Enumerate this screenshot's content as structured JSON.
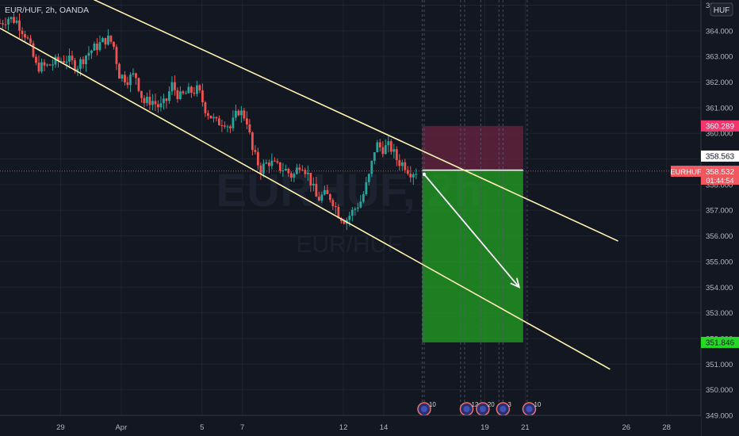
{
  "header": {
    "symbol_label": "EUR/HUF, 2h, OANDA"
  },
  "watermark": {
    "ticker": "EURHUF, 2h",
    "name": "EUR/HUF"
  },
  "currency_badge": "HUF",
  "colors": {
    "background": "#131722",
    "grid": "#2a2e39",
    "up": "#26a69a",
    "down": "#ef5350",
    "channel": "#fff3b0",
    "target_zone": "#22a622",
    "stop_zone": "#6b2440",
    "stop_label": "#f0366d",
    "target_label": "#27d827",
    "price_label": "#f0575f",
    "axis_text": "#b2b5be"
  },
  "price_labels": {
    "stop": "360.289",
    "entry": "358.563",
    "current": "358.532",
    "current_symbol": "EURHUF",
    "countdown": "01:44:54",
    "target": "351.846"
  },
  "event_markers": [
    "10",
    "12",
    "20",
    "3",
    "10"
  ],
  "chart_data": {
    "type": "candlestick",
    "title": "EUR/HUF, 2h, OANDA",
    "timeframe": "2h",
    "y_ticks": [
      "349.000",
      "350.000",
      "351.000",
      "352.000",
      "353.000",
      "354.000",
      "355.000",
      "356.000",
      "357.000",
      "358.000",
      "359.000",
      "360.000",
      "361.000",
      "362.000",
      "363.000",
      "364.000",
      "365.000"
    ],
    "y_range": [
      349.0,
      365.2
    ],
    "x_ticks": [
      {
        "label": "29",
        "day": 29
      },
      {
        "label": "Apr",
        "day": 32
      },
      {
        "label": "5",
        "day": 36
      },
      {
        "label": "7",
        "day": 38
      },
      {
        "label": "12",
        "day": 43
      },
      {
        "label": "14",
        "day": 45
      },
      {
        "label": "19",
        "day": 50
      },
      {
        "label": "21",
        "day": 52
      },
      {
        "label": "26",
        "day": 57
      },
      {
        "label": "28",
        "day": 59
      }
    ],
    "x_range": [
      26.0,
      60.7
    ],
    "price_path": [
      [
        26.0,
        364.3
      ],
      [
        26.4,
        364.5
      ],
      [
        26.8,
        364.4
      ],
      [
        27.3,
        363.8
      ],
      [
        27.8,
        362.6
      ],
      [
        28.3,
        362.6
      ],
      [
        28.8,
        362.8
      ],
      [
        29.3,
        362.9
      ],
      [
        29.8,
        362.6
      ],
      [
        30.3,
        363.1
      ],
      [
        30.8,
        363.4
      ],
      [
        31.3,
        363.7
      ],
      [
        31.6,
        363.5
      ],
      [
        31.9,
        362.3
      ],
      [
        32.3,
        362.1
      ],
      [
        32.7,
        362.3
      ],
      [
        33.1,
        361.2
      ],
      [
        33.5,
        361.3
      ],
      [
        33.9,
        361.0
      ],
      [
        34.2,
        361.2
      ],
      [
        34.5,
        361.9
      ],
      [
        34.9,
        361.4
      ],
      [
        35.3,
        361.6
      ],
      [
        35.8,
        361.7
      ],
      [
        36.2,
        360.9
      ],
      [
        36.7,
        360.4
      ],
      [
        37.1,
        360.5
      ],
      [
        37.4,
        360.2
      ],
      [
        37.8,
        360.9
      ],
      [
        38.2,
        360.6
      ],
      [
        38.5,
        359.3
      ],
      [
        38.9,
        358.6
      ],
      [
        39.3,
        358.9
      ],
      [
        39.7,
        358.7
      ],
      [
        40.1,
        358.6
      ],
      [
        40.5,
        358.3
      ],
      [
        40.9,
        358.9
      ],
      [
        41.3,
        358.3
      ],
      [
        41.7,
        357.4
      ],
      [
        42.0,
        357.6
      ],
      [
        42.4,
        357.5
      ],
      [
        42.8,
        356.8
      ],
      [
        43.1,
        356.6
      ],
      [
        43.5,
        357.0
      ],
      [
        43.9,
        357.4
      ],
      [
        44.3,
        358.4
      ],
      [
        44.6,
        359.6
      ],
      [
        44.9,
        359.4
      ],
      [
        45.3,
        359.5
      ],
      [
        45.7,
        358.9
      ],
      [
        46.0,
        358.8
      ],
      [
        46.3,
        358.5
      ],
      [
        46.6,
        358.53
      ]
    ],
    "channel_upper": [
      [
        26.0,
        366.9
      ],
      [
        56.6,
        355.8
      ]
    ],
    "channel_lower": [
      [
        26.0,
        364.1
      ],
      [
        56.2,
        350.8
      ]
    ],
    "position": {
      "type": "short",
      "entry": 358.563,
      "stop": 360.289,
      "target": 351.846,
      "start_day": 46.9,
      "end_day": 51.9
    },
    "arrow": {
      "from": [
        47.0,
        358.4
      ],
      "to": [
        51.7,
        354.0
      ]
    },
    "event_marker_days": [
      47.0,
      49.1,
      49.9,
      50.9,
      52.2
    ],
    "dashed_vlines_days": [
      46.9,
      47.0,
      48.8,
      49.0,
      49.8,
      50.7,
      50.9,
      52.1
    ]
  }
}
